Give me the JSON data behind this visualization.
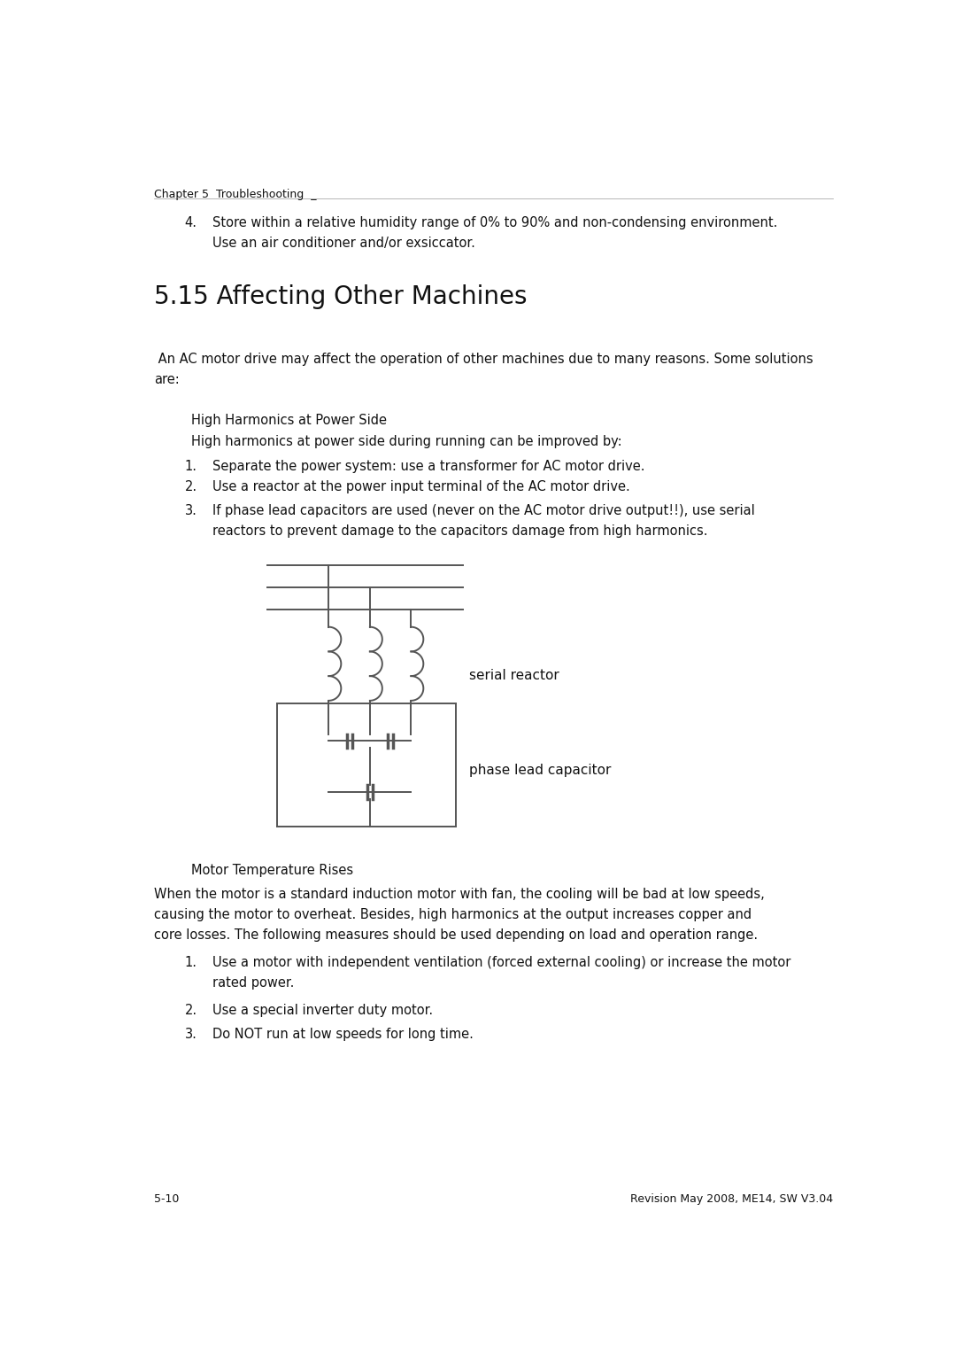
{
  "bg_color": "#ffffff",
  "text_color": "#111111",
  "header": "Chapter 5  Troubleshooting  _",
  "header_fontsize": 9.0,
  "section_title": "5.15 Affecting Other Machines",
  "section_title_fontsize": 20,
  "body_fontsize": 10.5,
  "label_fontsize": 11.0,
  "footer_left": "5-10",
  "footer_right": "Revision May 2008, ME14, SW V3.04",
  "footer_fontsize": 9.0,
  "item4_num": "4.",
  "item4_line1": "Store within a relative humidity range of 0% to 90% and non-condensing environment.",
  "item4_line2": "Use an air conditioner and/or exsiccator.",
  "intro_line1": " An AC motor drive may affect the operation of other machines due to many reasons. Some solutions",
  "intro_line2": "are:",
  "subhead1": "High Harmonics at Power Side",
  "subhead1_desc": "High harmonics at power side during running can be improved by:",
  "l1_1": "Separate the power system: use a transformer for AC motor drive.",
  "l1_2": "Use a reactor at the power input terminal of the AC motor drive.",
  "l1_3a": "If phase lead capacitors are used (never on the AC motor drive output!!), use serial",
  "l1_3b": "reactors to prevent damage to the capacitors damage from high harmonics.",
  "serial_reactor_label": "serial reactor",
  "phase_lead_label": "phase lead capacitor",
  "subhead2": "Motor Temperature Rises",
  "subhead2_desc1": "When the motor is a standard induction motor with fan, the cooling will be bad at low speeds,",
  "subhead2_desc2": "causing the motor to overheat. Besides, high harmonics at the output increases copper and",
  "subhead2_desc3": "core losses. The following measures should be used depending on load and operation range.",
  "l2_1a": "Use a motor with independent ventilation (forced external cooling) or increase the motor",
  "l2_1b": "rated power.",
  "l2_2": "Use a special inverter duty motor.",
  "l2_3": "Do NOT run at low speeds for long time.",
  "line_color": "#555555",
  "line_lw": 1.4
}
